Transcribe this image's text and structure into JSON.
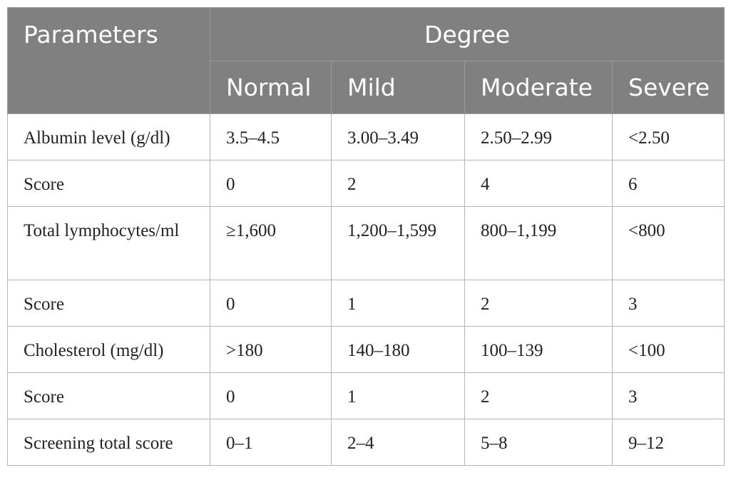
{
  "table": {
    "header": {
      "parameters": "Parameters",
      "degree": "Degree",
      "levels": [
        "Normal",
        "Mild",
        "Moderate",
        "Severe"
      ]
    },
    "rows": [
      {
        "label": "Albumin level (g/dl)",
        "cells": [
          "3.5–4.5",
          "3.00–3.49",
          "2.50–2.99",
          "<2.50"
        ]
      },
      {
        "label": "Score",
        "cells": [
          "0",
          "2",
          "4",
          "6"
        ]
      },
      {
        "label": "Total lymphocytes/ml",
        "cells": [
          "≥1,600",
          "1,200–1,599",
          "800–1,199",
          "<800"
        ]
      },
      {
        "label": "Score",
        "cells": [
          "0",
          "1",
          "2",
          "3"
        ]
      },
      {
        "label": "Cholesterol (mg/dl)",
        "cells": [
          ">180",
          "140–180",
          "100–139",
          "<100"
        ]
      },
      {
        "label": "Score",
        "cells": [
          "0",
          "1",
          "2",
          "3"
        ]
      },
      {
        "label": "Screening total score",
        "cells": [
          "0–1",
          "2–4",
          "5–8",
          "9–12"
        ]
      }
    ]
  }
}
